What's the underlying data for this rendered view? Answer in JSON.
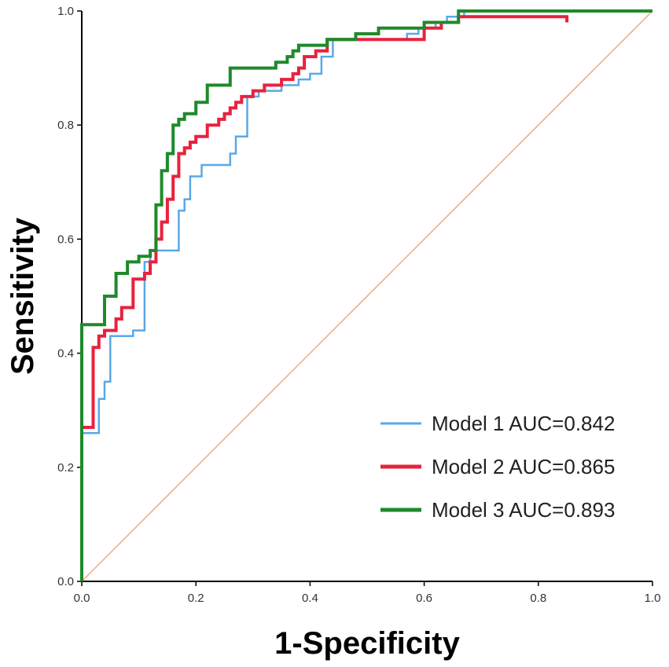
{
  "chart_data": {
    "type": "line",
    "title": "",
    "xlabel": "1-Specificity",
    "ylabel": "Sensitivity",
    "xlim": [
      0,
      1
    ],
    "ylim": [
      0,
      1
    ],
    "x_ticks": [
      "0.0",
      "0.2",
      "0.4",
      "0.6",
      "0.8",
      "1.0"
    ],
    "y_ticks": [
      "0.0",
      "0.2",
      "0.4",
      "0.6",
      "0.8",
      "1.0"
    ],
    "grid": false,
    "legend_position": "bottom-right",
    "reference_line": {
      "name": "Reference",
      "color": "#f0a878",
      "x": [
        0,
        1
      ],
      "y": [
        0,
        1
      ]
    },
    "series": [
      {
        "name": "Model 1 AUC=0.842",
        "color": "#5aa8e8",
        "x": [
          0,
          0,
          0.03,
          0.03,
          0.04,
          0.04,
          0.05,
          0.05,
          0.07,
          0.07,
          0.09,
          0.09,
          0.11,
          0.11,
          0.12,
          0.12,
          0.17,
          0.17,
          0.18,
          0.18,
          0.19,
          0.19,
          0.21,
          0.21,
          0.26,
          0.26,
          0.27,
          0.27,
          0.29,
          0.29,
          0.31,
          0.31,
          0.35,
          0.35,
          0.38,
          0.38,
          0.4,
          0.4,
          0.42,
          0.42,
          0.44,
          0.44,
          0.57,
          0.57,
          0.59,
          0.59,
          0.62,
          0.62,
          0.64,
          0.64,
          0.67,
          0.67,
          1.0
        ],
        "y": [
          0,
          0.26,
          0.26,
          0.32,
          0.32,
          0.35,
          0.35,
          0.43,
          0.43,
          0.43,
          0.43,
          0.44,
          0.44,
          0.56,
          0.56,
          0.58,
          0.58,
          0.65,
          0.65,
          0.67,
          0.67,
          0.71,
          0.71,
          0.73,
          0.73,
          0.75,
          0.75,
          0.78,
          0.78,
          0.85,
          0.85,
          0.86,
          0.86,
          0.87,
          0.87,
          0.88,
          0.88,
          0.89,
          0.89,
          0.92,
          0.92,
          0.95,
          0.95,
          0.96,
          0.96,
          0.97,
          0.97,
          0.98,
          0.98,
          0.99,
          0.99,
          1.0,
          1.0
        ]
      },
      {
        "name": "Model 2 AUC=0.865",
        "color": "#e8223d",
        "x": [
          0,
          0,
          0.02,
          0.02,
          0.03,
          0.03,
          0.04,
          0.04,
          0.06,
          0.06,
          0.07,
          0.07,
          0.09,
          0.09,
          0.11,
          0.11,
          0.12,
          0.12,
          0.13,
          0.13,
          0.14,
          0.14,
          0.15,
          0.15,
          0.16,
          0.16,
          0.17,
          0.17,
          0.18,
          0.18,
          0.19,
          0.19,
          0.2,
          0.2,
          0.22,
          0.22,
          0.24,
          0.24,
          0.25,
          0.25,
          0.26,
          0.26,
          0.27,
          0.27,
          0.28,
          0.28,
          0.3,
          0.3,
          0.32,
          0.32,
          0.35,
          0.35,
          0.37,
          0.37,
          0.38,
          0.38,
          0.39,
          0.39,
          0.41,
          0.41,
          0.43,
          0.43,
          0.48,
          0.48,
          0.6,
          0.6,
          0.63,
          0.63,
          0.66,
          0.66,
          0.8,
          0.8,
          0.85,
          0.85
        ],
        "y": [
          0,
          0.27,
          0.27,
          0.41,
          0.41,
          0.43,
          0.43,
          0.44,
          0.44,
          0.46,
          0.46,
          0.48,
          0.48,
          0.53,
          0.53,
          0.54,
          0.54,
          0.56,
          0.56,
          0.6,
          0.6,
          0.63,
          0.63,
          0.67,
          0.67,
          0.71,
          0.71,
          0.75,
          0.75,
          0.76,
          0.76,
          0.77,
          0.77,
          0.78,
          0.78,
          0.8,
          0.8,
          0.81,
          0.81,
          0.82,
          0.82,
          0.83,
          0.83,
          0.84,
          0.84,
          0.85,
          0.85,
          0.86,
          0.86,
          0.87,
          0.87,
          0.88,
          0.88,
          0.89,
          0.89,
          0.9,
          0.9,
          0.92,
          0.92,
          0.93,
          0.93,
          0.95,
          0.95,
          0.95,
          0.95,
          0.97,
          0.97,
          0.98,
          0.98,
          0.99,
          0.99,
          0.99,
          0.99,
          0.98
        ]
      },
      {
        "name": "Model 3 AUC=0.893",
        "color": "#1e8a2a",
        "x": [
          0,
          0,
          0.04,
          0.04,
          0.06,
          0.06,
          0.08,
          0.08,
          0.1,
          0.1,
          0.12,
          0.12,
          0.13,
          0.13,
          0.14,
          0.14,
          0.15,
          0.15,
          0.16,
          0.16,
          0.17,
          0.17,
          0.18,
          0.18,
          0.2,
          0.2,
          0.22,
          0.22,
          0.26,
          0.26,
          0.34,
          0.34,
          0.36,
          0.36,
          0.37,
          0.37,
          0.38,
          0.38,
          0.43,
          0.43,
          0.48,
          0.48,
          0.52,
          0.52,
          0.6,
          0.6,
          0.66,
          0.66,
          1.0
        ],
        "y": [
          0,
          0.45,
          0.45,
          0.5,
          0.5,
          0.54,
          0.54,
          0.56,
          0.56,
          0.57,
          0.57,
          0.58,
          0.58,
          0.66,
          0.66,
          0.72,
          0.72,
          0.75,
          0.75,
          0.8,
          0.8,
          0.81,
          0.81,
          0.82,
          0.82,
          0.84,
          0.84,
          0.87,
          0.87,
          0.9,
          0.9,
          0.91,
          0.91,
          0.92,
          0.92,
          0.93,
          0.93,
          0.94,
          0.94,
          0.95,
          0.95,
          0.96,
          0.96,
          0.97,
          0.97,
          0.98,
          0.98,
          1.0,
          1.0
        ]
      }
    ]
  }
}
